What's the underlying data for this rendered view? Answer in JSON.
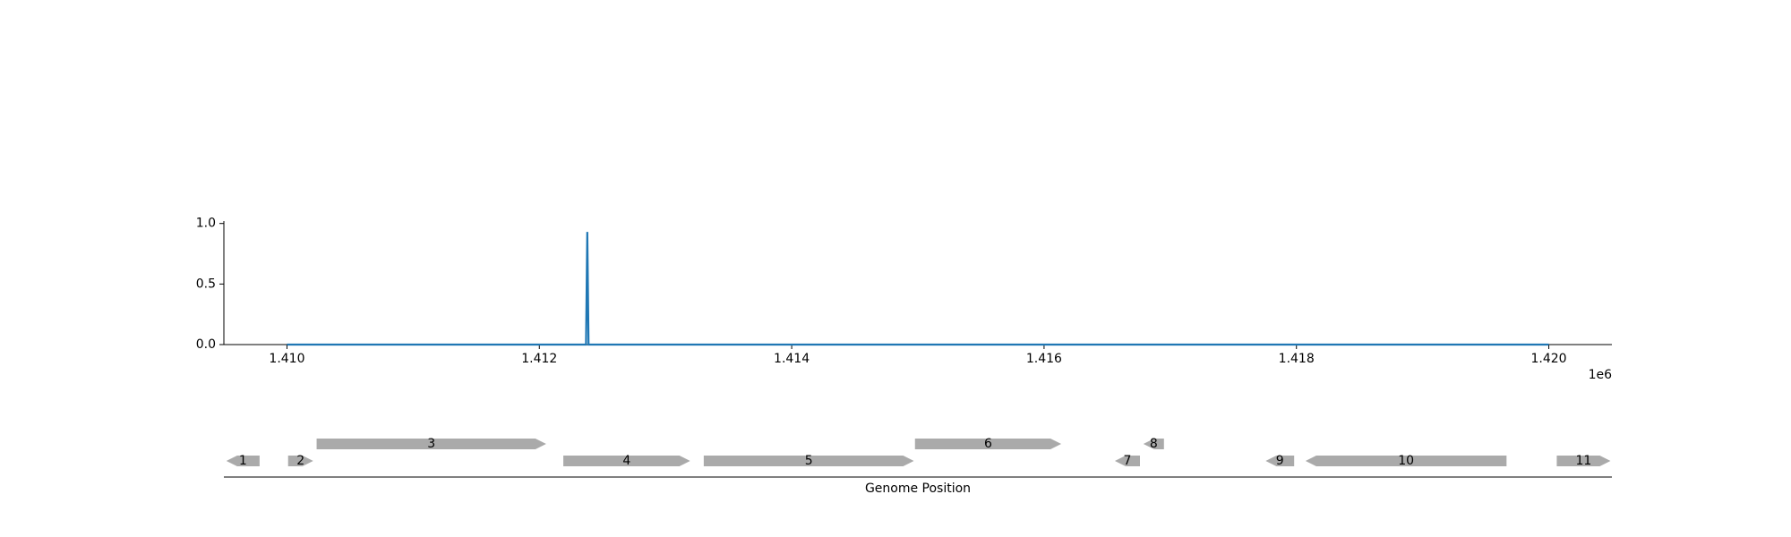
{
  "chart_data": [
    {
      "type": "line",
      "x": [
        1410000,
        1412370,
        1412380,
        1412390,
        1420000
      ],
      "series": [
        {
          "color": "#1f77b4",
          "values": [
            0,
            0,
            0.93,
            0,
            0
          ]
        }
      ],
      "xlim": [
        1409500,
        1420500
      ],
      "ylim": [
        0,
        1.02
      ],
      "xticks": [
        {
          "value": 1410000,
          "label": "1.410"
        },
        {
          "value": 1412000,
          "label": "1.412"
        },
        {
          "value": 1414000,
          "label": "1.414"
        },
        {
          "value": 1416000,
          "label": "1.416"
        },
        {
          "value": 1418000,
          "label": "1.418"
        },
        {
          "value": 1420000,
          "label": "1.420"
        }
      ],
      "x_offset_label": "1e6",
      "yticks": [
        {
          "value": 0,
          "label": "0.0"
        },
        {
          "value": 0.5,
          "label": "0.5"
        },
        {
          "value": 1.0,
          "label": "1.0"
        }
      ]
    },
    {
      "type": "gene-track",
      "xlabel": "Genome Position",
      "xlim": [
        1409500,
        1420500
      ],
      "color": "#aaaaaa",
      "genes": [
        {
          "label": "1",
          "start": 1409520,
          "end": 1409783,
          "strand": -1
        },
        {
          "label": "2",
          "start": 1410009,
          "end": 1410208,
          "strand": 1
        },
        {
          "label": "3",
          "start": 1410235,
          "end": 1412054,
          "strand": 1
        },
        {
          "label": "4",
          "start": 1412190,
          "end": 1413195,
          "strand": 1
        },
        {
          "label": "5",
          "start": 1413303,
          "end": 1414968,
          "strand": 1
        },
        {
          "label": "6",
          "start": 1414977,
          "end": 1416136,
          "strand": 1
        },
        {
          "label": "7",
          "start": 1416561,
          "end": 1416760,
          "strand": -1
        },
        {
          "label": "8",
          "start": 1416787,
          "end": 1416950,
          "strand": -1
        },
        {
          "label": "9",
          "start": 1417756,
          "end": 1417982,
          "strand": -1
        },
        {
          "label": "10",
          "start": 1418072,
          "end": 1419665,
          "strand": -1
        },
        {
          "label": "11",
          "start": 1420063,
          "end": 1420489,
          "strand": 1
        }
      ]
    }
  ]
}
